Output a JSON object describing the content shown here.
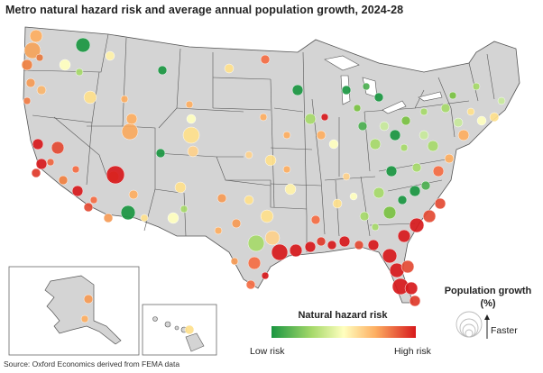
{
  "title": "Metro natural hazard risk and average annual population growth, 2024-28",
  "source": "Source: Oxford Economics derived from FEMA data",
  "legend": {
    "color_title": "Natural hazard risk",
    "low_label": "Low risk",
    "high_label": "High risk",
    "size_title": "Population growth (%)",
    "size_arrow_label": "Faster",
    "scale_colors": [
      "#1a9641",
      "#a6d96a",
      "#ffffbf",
      "#fdae61",
      "#d7191c"
    ]
  },
  "colors": {
    "land": "#d4d4d4",
    "border": "#555555",
    "water": "#ffffff"
  }
}
